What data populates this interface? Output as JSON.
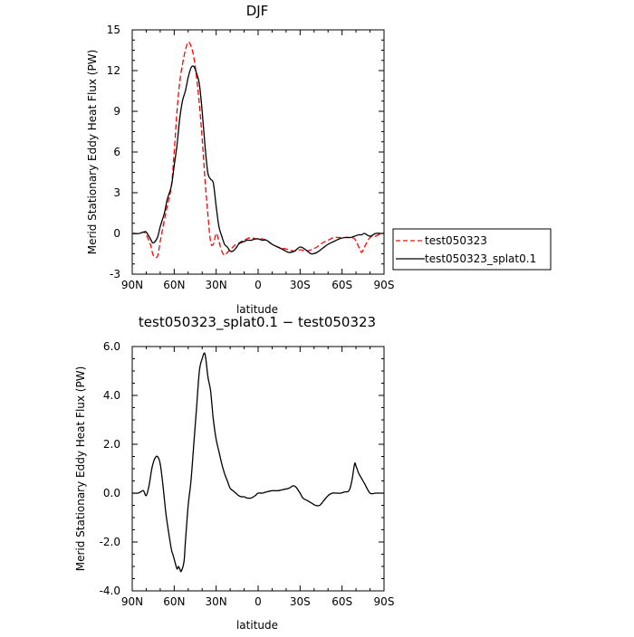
{
  "chart_data": [
    {
      "type": "line",
      "title": "DJF",
      "xlabel": "latitude",
      "ylabel": "Merid Stationary Eddy Heat Flux (PW)",
      "xlim": [
        90,
        -90
      ],
      "ylim": [
        -3,
        15
      ],
      "x_ticks": [
        90,
        60,
        30,
        0,
        -30,
        -60,
        -90
      ],
      "x_tick_labels": [
        "90N",
        "60N",
        "30N",
        "0",
        "30S",
        "60S",
        "90S"
      ],
      "y_ticks": [
        -3,
        0,
        3,
        6,
        9,
        12,
        15
      ],
      "y_tick_labels": [
        "-3",
        "0",
        "3",
        "6",
        "9",
        "12",
        "15"
      ],
      "legend_position": "right",
      "series": [
        {
          "name": "test050323",
          "color": "#ff0000",
          "dash": "dashed",
          "x": [
            90,
            85,
            82,
            80,
            77,
            75,
            72,
            70,
            67,
            65,
            62,
            60,
            58,
            56,
            54,
            52,
            50,
            48,
            46,
            44,
            42,
            40,
            38,
            36,
            34,
            32,
            30,
            28,
            26,
            24,
            22,
            20,
            18,
            16,
            14,
            12,
            10,
            8,
            5,
            2,
            0,
            -3,
            -6,
            -10,
            -14,
            -18,
            -22,
            -26,
            -30,
            -34,
            -38,
            -42,
            -46,
            -50,
            -54,
            -58,
            -62,
            -66,
            -69,
            -72,
            -74,
            -76,
            -80,
            -84,
            -88,
            -90
          ],
          "y": [
            0,
            0,
            0.1,
            -0.1,
            -0.8,
            -1.6,
            -1.7,
            -0.6,
            1.0,
            2.0,
            3.5,
            6.0,
            9.0,
            11.2,
            12.5,
            13.5,
            14.1,
            13.8,
            13.0,
            11.5,
            9.5,
            7.0,
            4.0,
            1.5,
            -0.6,
            -0.8,
            0.0,
            -0.6,
            -1.3,
            -1.6,
            -1.4,
            -1.2,
            -1.0,
            -0.8,
            -0.7,
            -0.7,
            -0.5,
            -0.4,
            -0.3,
            -0.4,
            -0.4,
            -0.4,
            -0.5,
            -0.8,
            -1.0,
            -1.1,
            -1.2,
            -1.3,
            -1.2,
            -1.3,
            -1.2,
            -1.0,
            -0.7,
            -0.5,
            -0.3,
            -0.3,
            -0.3,
            -0.3,
            -0.4,
            -1.0,
            -1.4,
            -1.0,
            -0.3,
            -0.2,
            0,
            0
          ]
        },
        {
          "name": "test050323_splat0.1",
          "color": "#000000",
          "dash": "solid",
          "x": [
            90,
            85,
            82,
            80,
            77,
            75,
            72,
            70,
            67,
            65,
            62,
            60,
            58,
            56,
            54,
            52,
            50,
            48,
            46,
            44,
            42,
            40,
            38,
            36,
            34,
            32,
            30,
            28,
            26,
            24,
            22,
            20,
            18,
            16,
            14,
            12,
            10,
            8,
            5,
            2,
            0,
            -3,
            -6,
            -10,
            -14,
            -18,
            -22,
            -26,
            -30,
            -34,
            -38,
            -42,
            -46,
            -50,
            -54,
            -58,
            -62,
            -66,
            -69,
            -72,
            -74,
            -76,
            -80,
            -84,
            -88,
            -90
          ],
          "y": [
            0,
            0,
            0.1,
            0.1,
            -0.4,
            -0.7,
            -0.3,
            0.5,
            1.5,
            2.5,
            3.5,
            5.0,
            6.5,
            8.5,
            9.8,
            10.5,
            11.5,
            12.2,
            12.3,
            11.8,
            11.0,
            9.0,
            6.5,
            4.5,
            4.0,
            3.7,
            2.0,
            0.5,
            -0.2,
            -0.8,
            -1.0,
            -1.3,
            -1.3,
            -1.1,
            -0.8,
            -0.6,
            -0.6,
            -0.5,
            -0.5,
            -0.4,
            -0.4,
            -0.5,
            -0.5,
            -0.8,
            -1.0,
            -1.2,
            -1.4,
            -1.3,
            -1.0,
            -1.2,
            -1.5,
            -1.4,
            -1.1,
            -0.8,
            -0.6,
            -0.4,
            -0.3,
            -0.3,
            -0.2,
            -0.1,
            -0.1,
            0.0,
            -0.2,
            0.0,
            0,
            0
          ]
        }
      ]
    },
    {
      "type": "line",
      "title": "test050323_splat0.1 − test050323",
      "xlabel": "latitude",
      "ylabel": "Merid Stationary Eddy Heat Flux (PW)",
      "xlim": [
        90,
        -90
      ],
      "ylim": [
        -4,
        6
      ],
      "x_ticks": [
        90,
        60,
        30,
        0,
        -30,
        -60,
        -90
      ],
      "x_tick_labels": [
        "90N",
        "60N",
        "30N",
        "0",
        "30S",
        "60S",
        "90S"
      ],
      "y_ticks": [
        -4,
        -2,
        0,
        2,
        4,
        6
      ],
      "y_tick_labels": [
        "-4.0",
        "-2.0",
        "0.0",
        "2.0",
        "4.0",
        "6.0"
      ],
      "series": [
        {
          "color": "#000000",
          "dash": "solid",
          "x": [
            90,
            86,
            84,
            82,
            80,
            78,
            76,
            74,
            72,
            70,
            68,
            66,
            64,
            62,
            61,
            60,
            58,
            57,
            56,
            55,
            53,
            52,
            50,
            48,
            46,
            44,
            42,
            40,
            38,
            36,
            35,
            34,
            33,
            32,
            30,
            28,
            26,
            24,
            22,
            20,
            18,
            16,
            14,
            12,
            10,
            8,
            5,
            2,
            0,
            -3,
            -6,
            -10,
            -14,
            -18,
            -22,
            -25,
            -27,
            -30,
            -32,
            -35,
            -38,
            -41,
            -44,
            -47,
            -50,
            -53,
            -56,
            -59,
            -62,
            -65,
            -67,
            -69,
            -70,
            -72,
            -74,
            -76,
            -80,
            -84,
            -88,
            -90
          ],
          "y": [
            0,
            0,
            0.05,
            0.1,
            -0.1,
            0.3,
            1.0,
            1.4,
            1.5,
            1.2,
            0.3,
            -0.8,
            -1.6,
            -2.3,
            -2.5,
            -2.7,
            -3.1,
            -3.0,
            -3.1,
            -3.2,
            -2.8,
            -2.0,
            -0.5,
            0.5,
            2.0,
            3.5,
            5.0,
            5.5,
            5.7,
            4.8,
            4.5,
            4.2,
            3.6,
            3.0,
            2.2,
            1.7,
            1.2,
            0.8,
            0.5,
            0.2,
            0.1,
            0.0,
            -0.1,
            -0.15,
            -0.15,
            -0.2,
            -0.2,
            -0.1,
            0.0,
            0.0,
            0.05,
            0.1,
            0.1,
            0.15,
            0.2,
            0.3,
            0.25,
            0.0,
            -0.2,
            -0.3,
            -0.4,
            -0.5,
            -0.5,
            -0.3,
            -0.1,
            0.0,
            0.0,
            0.0,
            0.05,
            0.1,
            0.5,
            1.2,
            1.1,
            0.8,
            0.6,
            0.4,
            0.0,
            0.0,
            0,
            0
          ]
        }
      ]
    }
  ]
}
